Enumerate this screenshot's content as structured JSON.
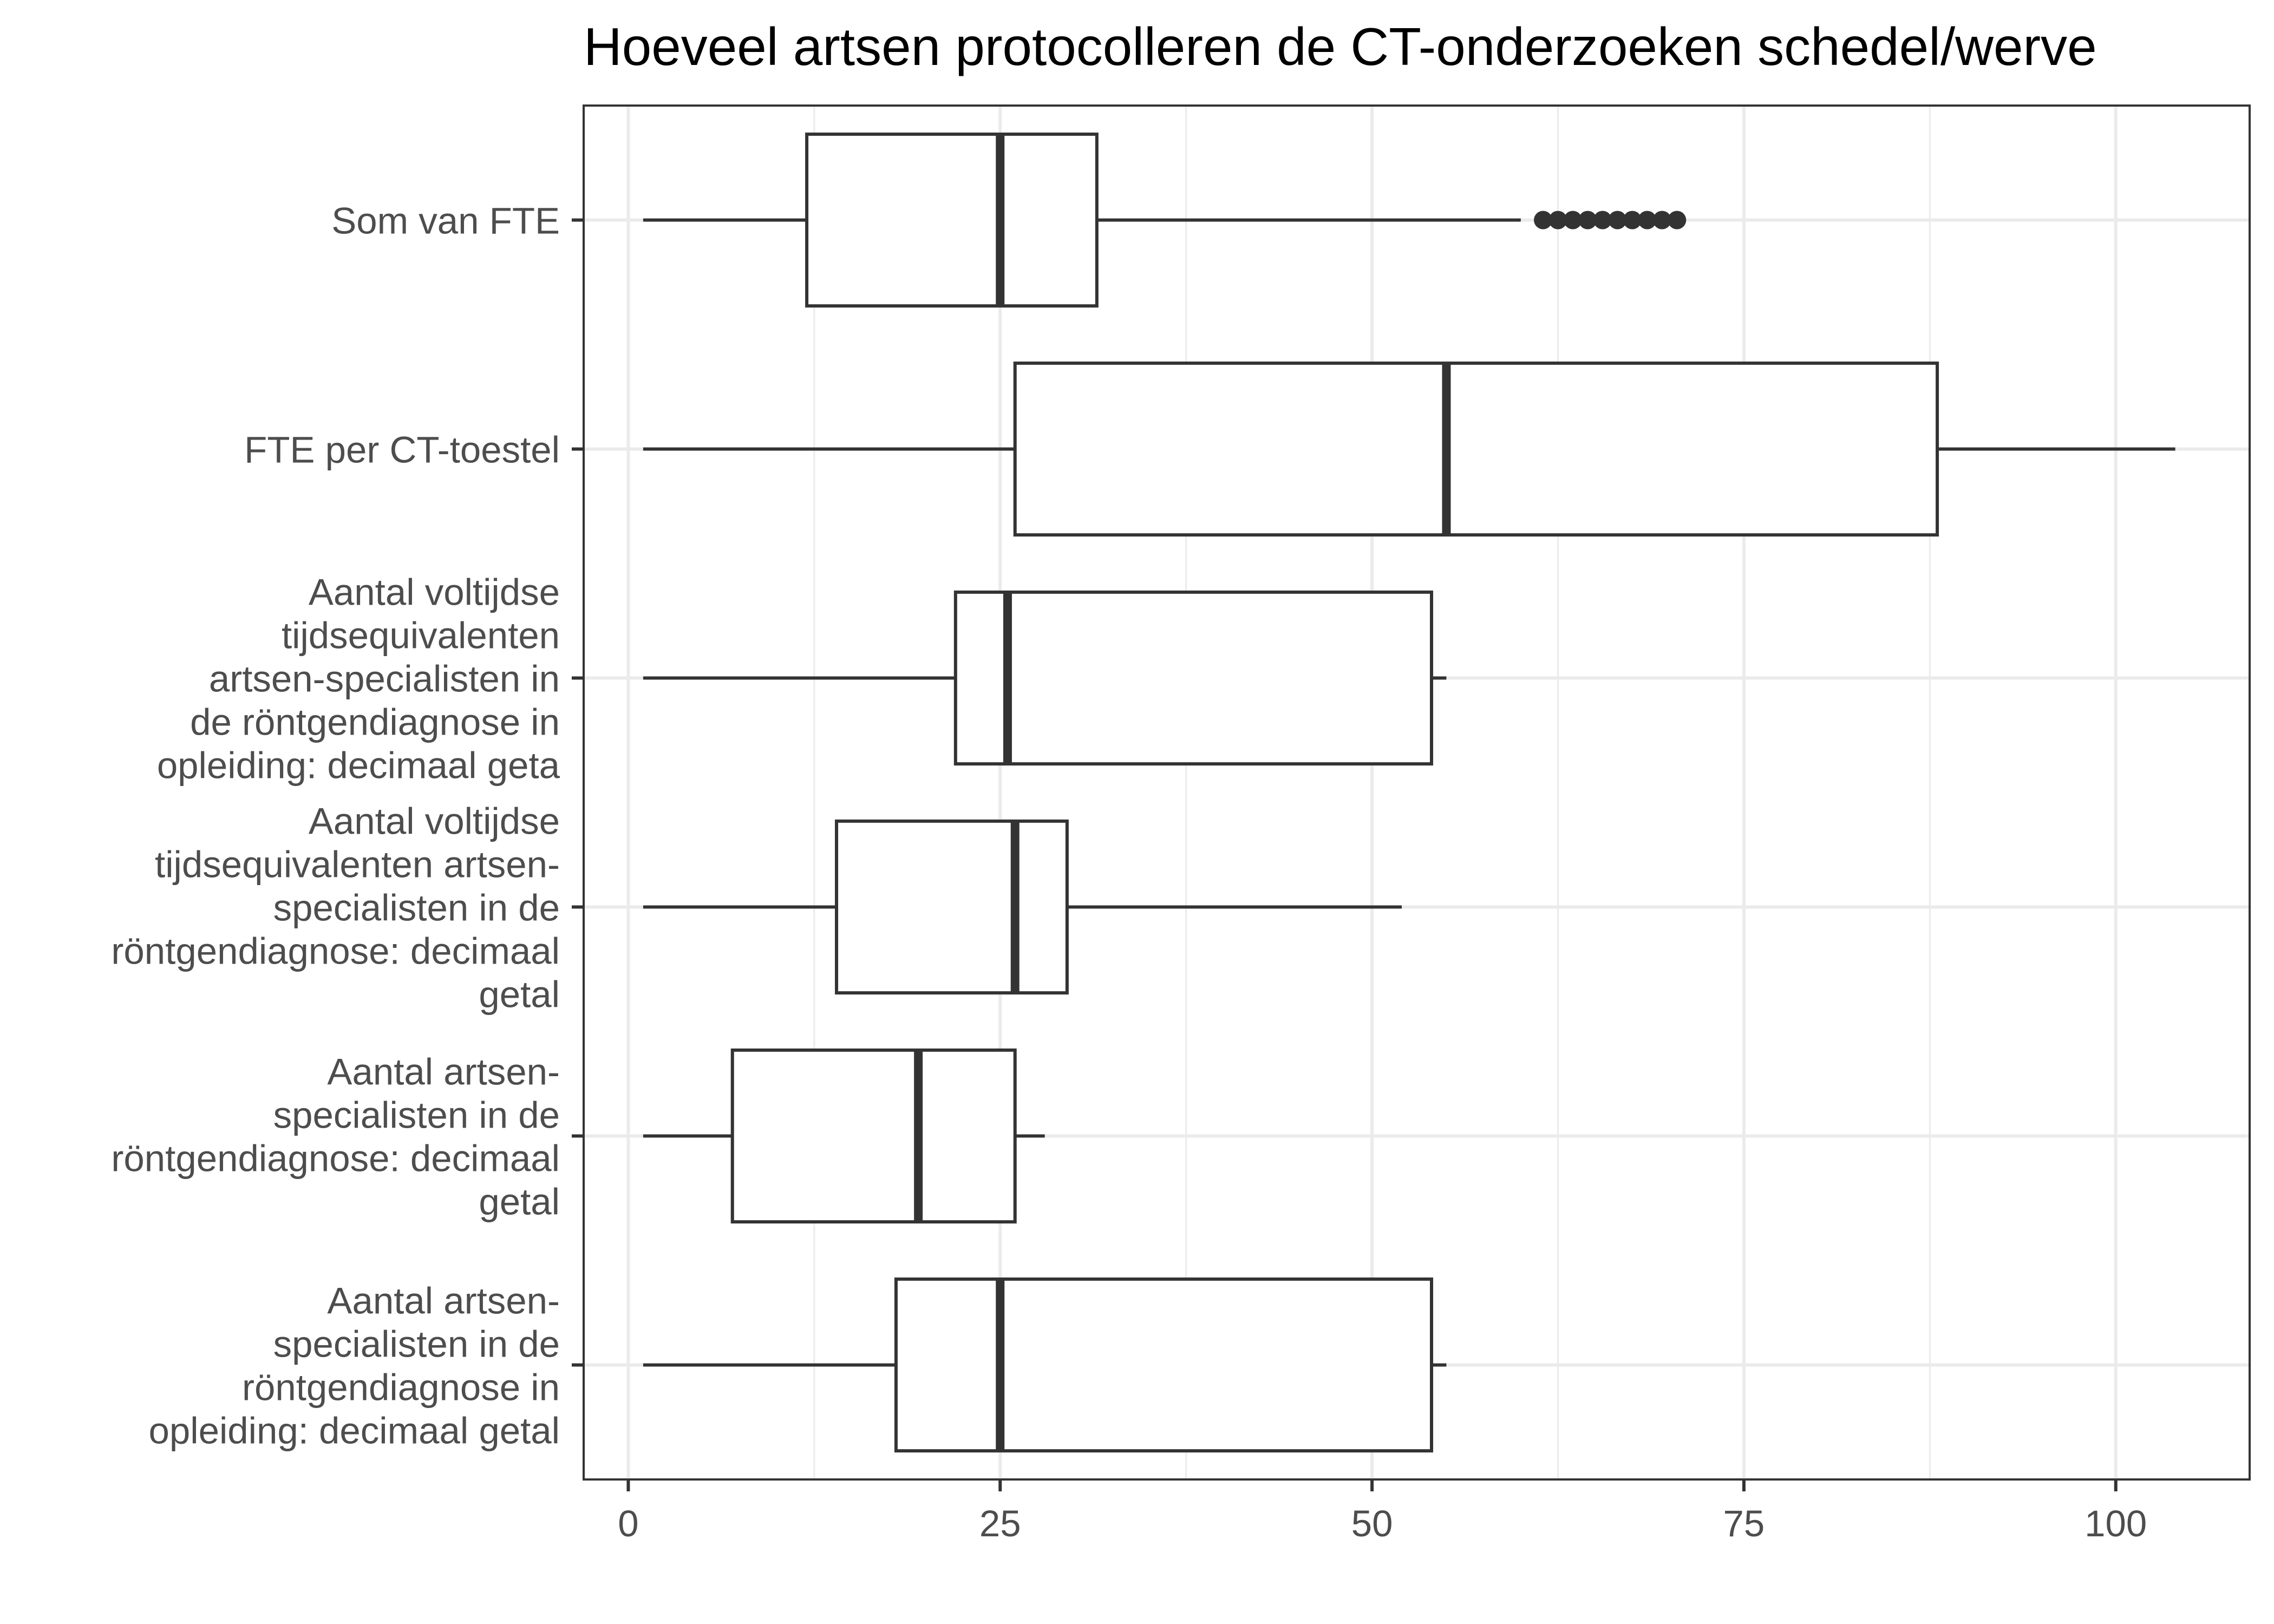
{
  "chart_data": {
    "type": "boxplot",
    "orientation": "horizontal",
    "title": "Hoeveel artsen protocolleren de CT-onderzoeken schedel/werve",
    "xlabel": "",
    "ylabel": "",
    "xlim": [
      -3,
      109
    ],
    "x_ticks": [
      0,
      25,
      50,
      75,
      100
    ],
    "x_tick_labels": [
      "0",
      "25",
      "50",
      "75",
      "100"
    ],
    "grid": true,
    "legend": "none",
    "categories": [
      {
        "label_lines": [
          "Som van FTE"
        ],
        "min": 1,
        "q1": 12,
        "median": 25,
        "q3": 31.5,
        "max": 60,
        "outliers": [
          61.5,
          62.5,
          63.5,
          64.5,
          65.5,
          66.5,
          67.5,
          68.5,
          69.5,
          70.5
        ]
      },
      {
        "label_lines": [
          "FTE per CT-toestel"
        ],
        "min": 1,
        "q1": 26,
        "median": 55,
        "q3": 88,
        "max": 104,
        "outliers": []
      },
      {
        "label_lines": [
          "Aantal voltijdse",
          "tijdsequivalenten",
          "artsen-specialisten in",
          "de röntgendiagnose in",
          "opleiding: decimaal geta"
        ],
        "min": 1,
        "q1": 22,
        "median": 25.5,
        "q3": 54,
        "max": 55,
        "outliers": []
      },
      {
        "label_lines": [
          "Aantal voltijdse",
          "tijdsequivalenten artsen-",
          "specialisten in de",
          "röntgendiagnose: decimaal",
          "getal"
        ],
        "min": 1,
        "q1": 14,
        "median": 26,
        "q3": 29.5,
        "max": 52,
        "outliers": []
      },
      {
        "label_lines": [
          "Aantal artsen-",
          "specialisten in de",
          "röntgendiagnose: decimaal",
          "getal"
        ],
        "min": 1,
        "q1": 7,
        "median": 19.5,
        "q3": 26,
        "max": 28,
        "outliers": []
      },
      {
        "label_lines": [
          "Aantal artsen-",
          "specialisten in de",
          "röntgendiagnose in",
          "opleiding: decimaal getal"
        ],
        "min": 1,
        "q1": 18,
        "median": 25,
        "q3": 54,
        "max": 55,
        "outliers": []
      }
    ]
  }
}
